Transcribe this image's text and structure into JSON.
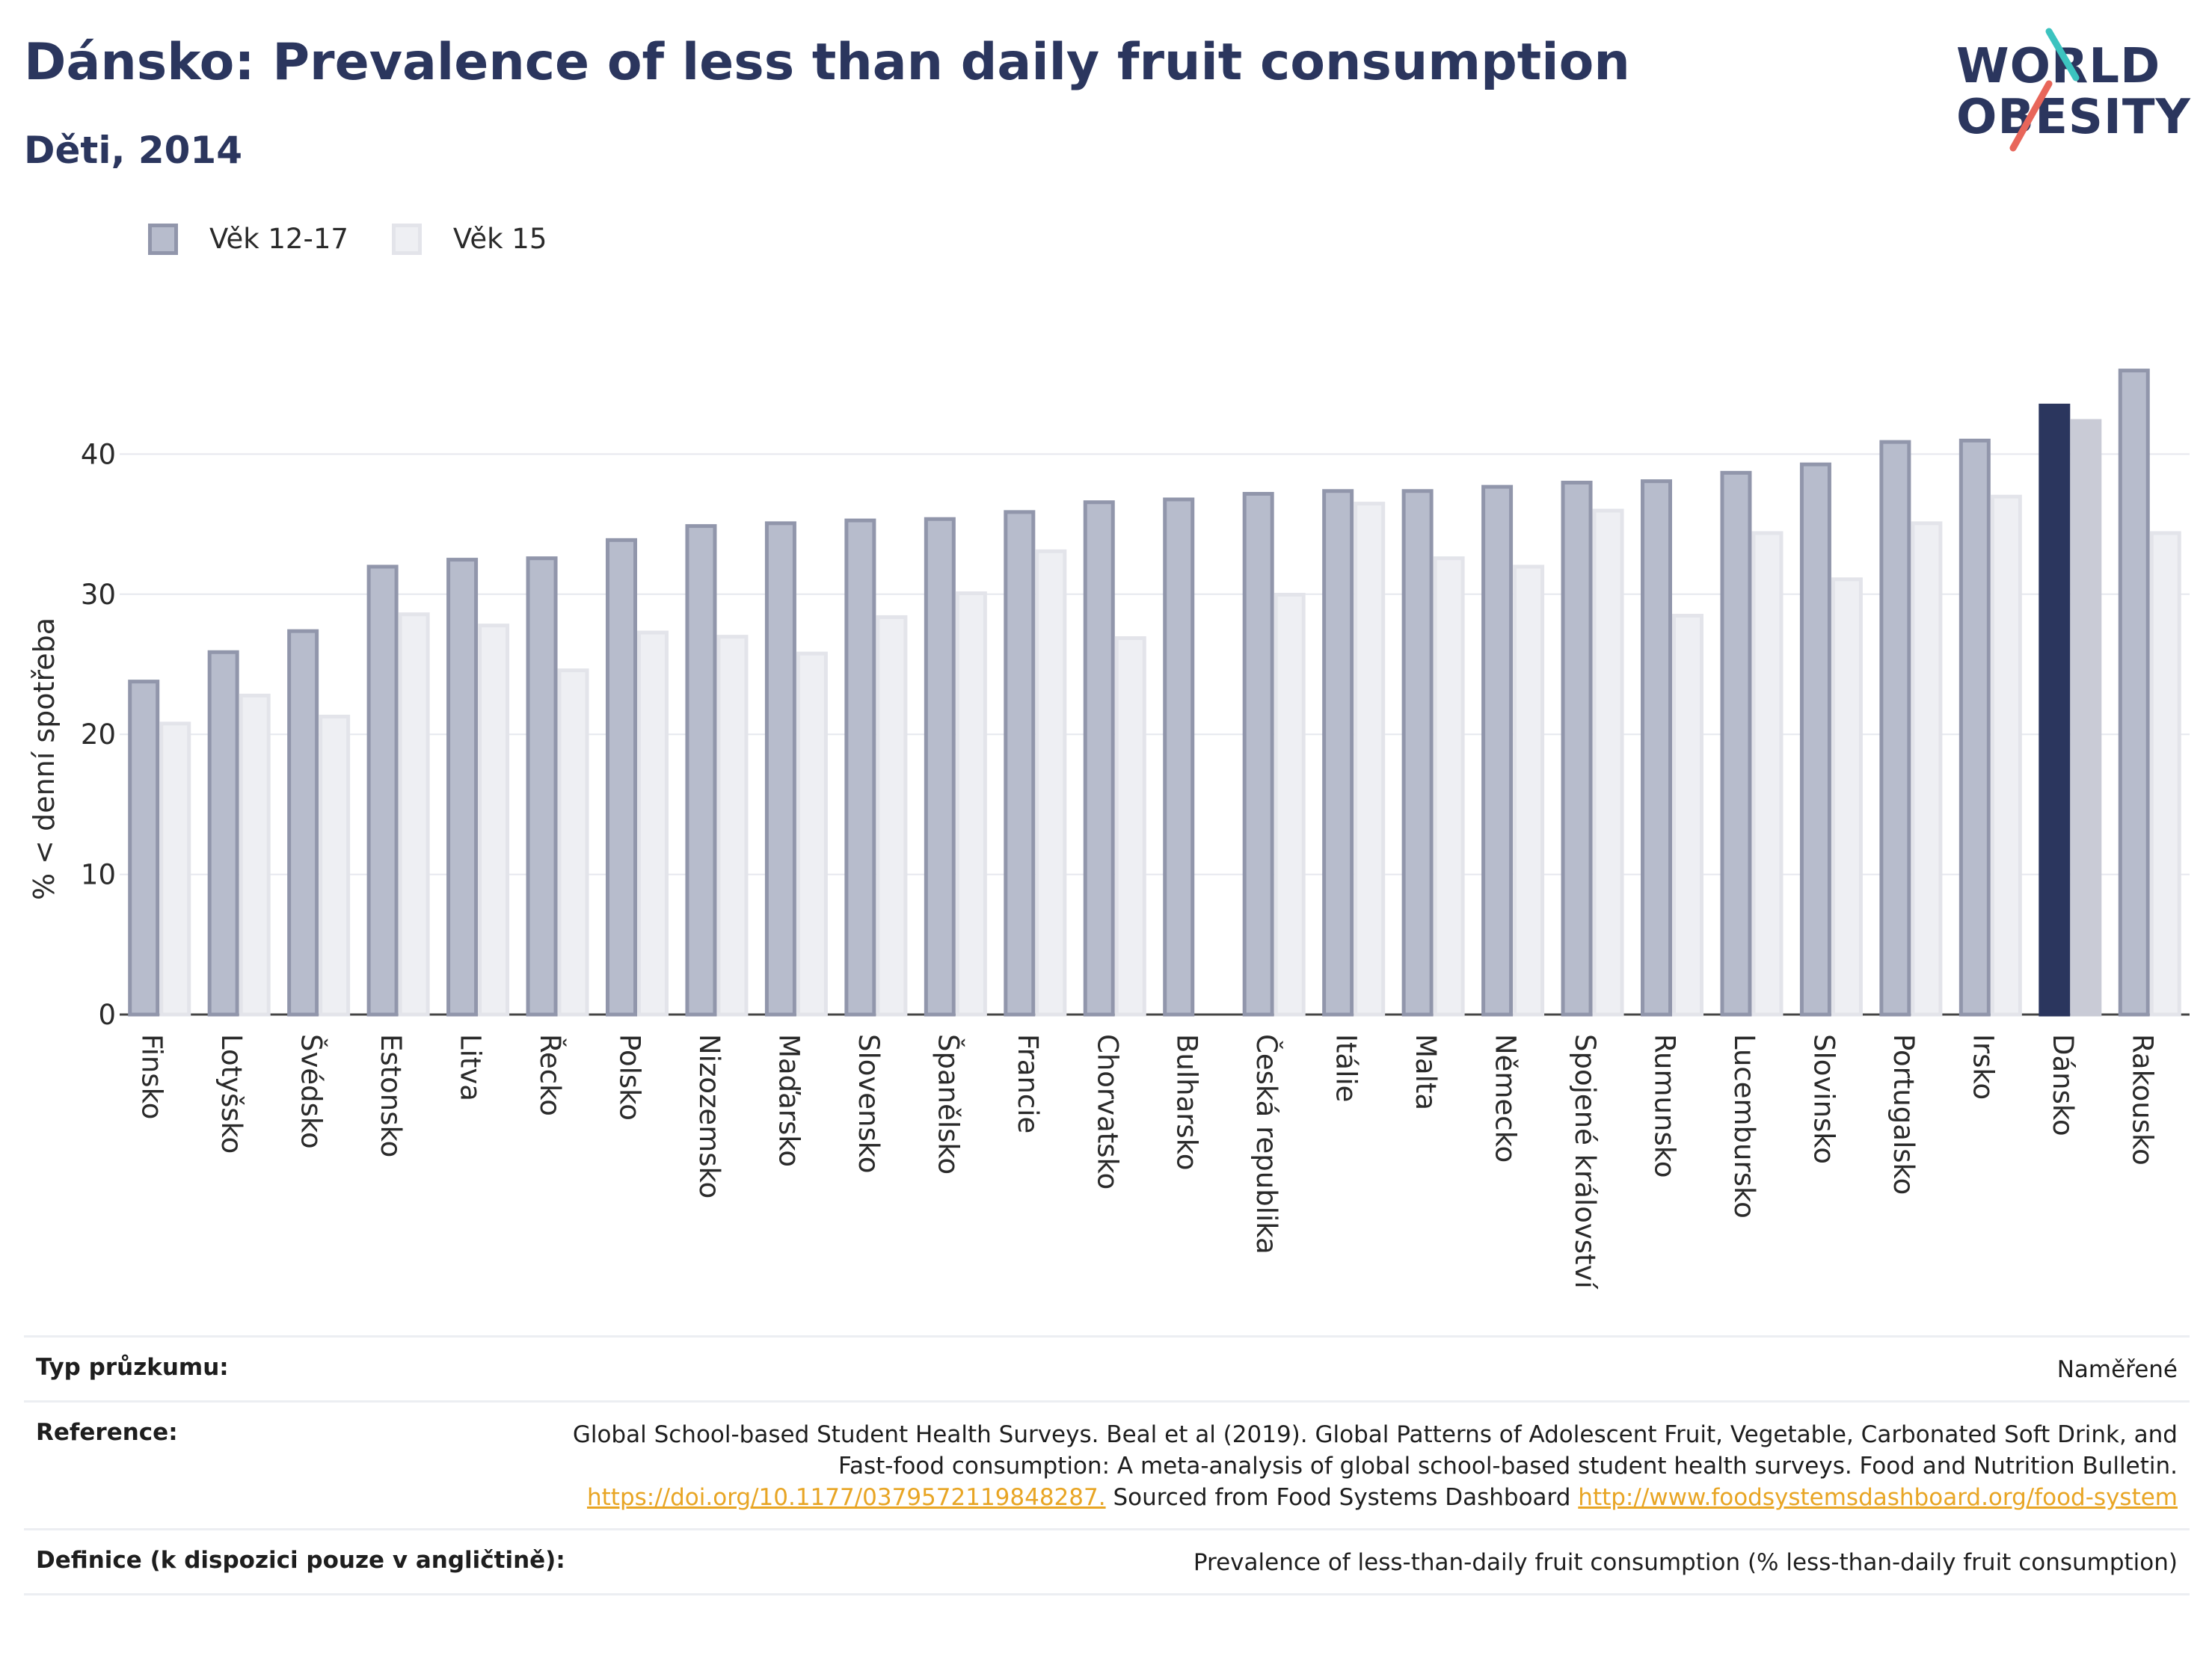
{
  "header": {
    "title": "Dánsko: Prevalence of less than daily fruit consumption",
    "subtitle": "Děti, 2014"
  },
  "logo": {
    "line1": "WORLD",
    "line2": "OBESITY"
  },
  "colors": {
    "series1": "#b7bccc",
    "series1_border": "#9196ab",
    "series2": "#eeeff3",
    "series2_border": "#e3e4ea",
    "highlight1": "#2b365e",
    "highlight2": "#c9cbd6",
    "title": "#2b365e",
    "link": "#e8a524",
    "logo_accent_teal": "#3cc3bf",
    "logo_accent_red": "#e8665a"
  },
  "chart_data": {
    "type": "bar",
    "ylabel": "% < denní spotřeba",
    "ylim": [
      0,
      50
    ],
    "yticks": [
      0,
      10,
      20,
      30,
      40
    ],
    "grid": true,
    "legend_position": "top-left",
    "highlight_category": "Dánsko",
    "categories": [
      "Finsko",
      "Lotyšsko",
      "Švédsko",
      "Estonsko",
      "Litva",
      "Řecko",
      "Polsko",
      "Nizozemsko",
      "Maďarsko",
      "Slovensko",
      "Španělsko",
      "Francie",
      "Chorvatsko",
      "Bulharsko",
      "Česká republika",
      "Itálie",
      "Malta",
      "Německo",
      "Spojené království",
      "Rumunsko",
      "Lucembursko",
      "Slovinsko",
      "Portugalsko",
      "Irsko",
      "Dánsko",
      "Rakousko"
    ],
    "series": [
      {
        "name": "Věk 12-17",
        "values": [
          23.9,
          26.0,
          27.5,
          32.1,
          32.6,
          32.7,
          34.0,
          35.0,
          35.2,
          35.4,
          35.5,
          36.0,
          36.7,
          36.9,
          37.3,
          37.5,
          37.5,
          37.8,
          38.1,
          38.2,
          38.8,
          39.4,
          41.0,
          41.1,
          43.6,
          46.1
        ]
      },
      {
        "name": "Věk 15",
        "values": [
          20.9,
          22.9,
          21.4,
          28.7,
          27.9,
          24.7,
          27.4,
          27.1,
          25.9,
          28.5,
          30.2,
          33.2,
          27.0,
          null,
          30.1,
          36.6,
          32.7,
          32.1,
          36.1,
          28.6,
          34.5,
          31.2,
          35.2,
          37.1,
          42.5,
          34.5
        ]
      }
    ]
  },
  "footer": {
    "rows": [
      {
        "label": "Typ průzkumu:",
        "value": "Naměřené"
      },
      {
        "label": "Reference:",
        "value": "Global School-based Student Health Surveys. Beal et al (2019). Global Patterns of Adolescent Fruit, Vegetable, Carbonated Soft Drink, and Fast-food consumption: A meta-analysis of global school-based student health surveys. Food and Nutrition Bulletin.",
        "link1": "https://doi.org/10.1177/0379572119848287.",
        "mid": "Sourced from Food Systems Dashboard",
        "link2": "http://www.foodsystemsdashboard.org/food-system"
      },
      {
        "label": "Definice (k dispozici pouze v angličtině):",
        "value": "Prevalence of less-than-daily fruit consumption (% less-than-daily fruit consumption)"
      }
    ]
  }
}
